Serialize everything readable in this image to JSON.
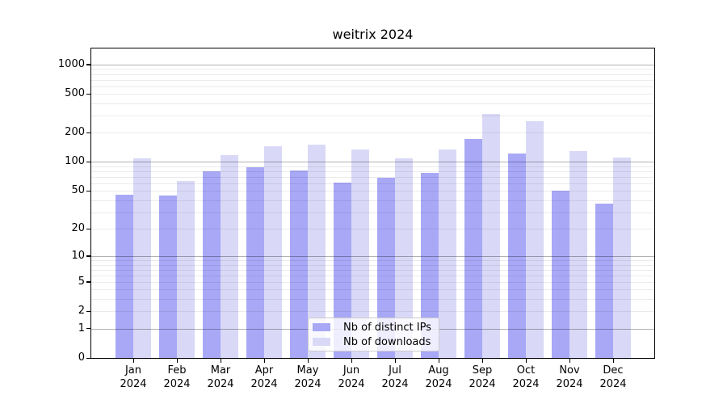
{
  "chart_data": {
    "type": "bar",
    "title": "weitrix 2024",
    "categories": [
      "Jan",
      "Feb",
      "Mar",
      "Apr",
      "May",
      "Jun",
      "Jul",
      "Aug",
      "Sep",
      "Oct",
      "Nov",
      "Dec"
    ],
    "year_label": "2024",
    "series": [
      {
        "name": "Nb of distinct IPs",
        "color": "#a8a8f7",
        "values": [
          46,
          45,
          80,
          88,
          81,
          61,
          69,
          77,
          172,
          122,
          50,
          37
        ]
      },
      {
        "name": "Nb of downloads",
        "color": "#d9d9f7",
        "values": [
          109,
          64,
          117,
          144,
          151,
          135,
          110,
          135,
          314,
          263,
          129,
          112
        ]
      }
    ],
    "yticks": [
      0,
      1,
      2,
      5,
      10,
      20,
      50,
      100,
      200,
      500,
      1000
    ],
    "scale": "log1p",
    "ylim": [
      0,
      1460
    ],
    "grid": true,
    "major_grid_values": [
      1,
      10,
      100,
      1000
    ],
    "legend_position": "bottom-center",
    "xlabel": "",
    "ylabel": ""
  },
  "colors": {
    "background": "#ffffff",
    "axis": "#000000",
    "grid_major": "#b0b0b0",
    "grid_minor": "#ececec",
    "legend_border": "#cccccc",
    "bar_distinct_ips": "#a8a8f7",
    "bar_downloads": "#d9d9f7"
  }
}
